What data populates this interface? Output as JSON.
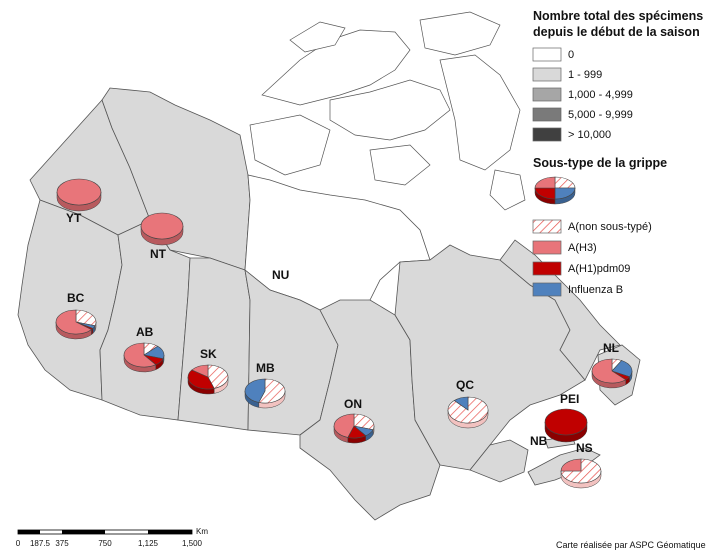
{
  "legend": {
    "total_title_line1": "Nombre total des spécimens",
    "total_title_line2": "depuis le début de la saison",
    "total_classes": [
      {
        "label": "0",
        "color": "#ffffff"
      },
      {
        "label": "1 - 999",
        "color": "#d9d9d9"
      },
      {
        "label": "1,000 - 4,999",
        "color": "#a6a6a6"
      },
      {
        "label": "5,000 - 9,999",
        "color": "#7a7a7a"
      },
      {
        "label": "> 10,000",
        "color": "#404040"
      }
    ],
    "subtype_title": "Sous-type de la grippe",
    "subtypes": [
      {
        "label": "A(non sous-typé)",
        "color": "#e8534f",
        "pattern": "hatch"
      },
      {
        "label": "A(H3)",
        "color": "#e8757a"
      },
      {
        "label": "A(H1)pdm09",
        "color": "#c00000"
      },
      {
        "label": "Influenza B",
        "color": "#4f81bd"
      }
    ]
  },
  "provinces": [
    {
      "code": "YT",
      "total_class": "1 - 999",
      "pie": {
        "unsubtyped": 0,
        "h3": 100,
        "h1": 0,
        "b": 0
      }
    },
    {
      "code": "NT",
      "total_class": "1 - 999",
      "pie": {
        "unsubtyped": 0,
        "h3": 100,
        "h1": 0,
        "b": 0
      }
    },
    {
      "code": "NU",
      "total_class": "0",
      "pie": null
    },
    {
      "code": "BC",
      "total_class": "1 - 999",
      "pie": {
        "unsubtyped": 30,
        "h3": 64,
        "h1": 2,
        "b": 4
      }
    },
    {
      "code": "AB",
      "total_class": "1 - 999",
      "pie": {
        "unsubtyped": 12,
        "h3": 60,
        "h1": 10,
        "b": 18
      }
    },
    {
      "code": "SK",
      "total_class": "1 - 999",
      "pie": {
        "unsubtyped": 45,
        "h3": 15,
        "h1": 40,
        "b": 0
      }
    },
    {
      "code": "MB",
      "total_class": "1 - 999",
      "pie": {
        "unsubtyped": 55,
        "h3": 0,
        "h1": 0,
        "b": 45
      }
    },
    {
      "code": "ON",
      "total_class": "1 - 999",
      "pie": {
        "unsubtyped": 30,
        "h3": 45,
        "h1": 15,
        "b": 10
      }
    },
    {
      "code": "QC",
      "total_class": "1 - 999",
      "pie": {
        "unsubtyped": 88,
        "h3": 0,
        "h1": 0,
        "b": 12
      }
    },
    {
      "code": "NL",
      "total_class": "1 - 999",
      "pie": {
        "unsubtyped": 8,
        "h3": 62,
        "h1": 5,
        "b": 25
      }
    },
    {
      "code": "PEI",
      "total_class": "1 - 999",
      "pie": {
        "unsubtyped": 0,
        "h3": 0,
        "h1": 100,
        "b": 0
      }
    },
    {
      "code": "NB",
      "total_class": "1 - 999",
      "pie": null
    },
    {
      "code": "NS",
      "total_class": "1 - 999",
      "pie": {
        "unsubtyped": 75,
        "h3": 25,
        "h1": 0,
        "b": 0
      }
    }
  ],
  "scale": {
    "ticks": [
      "0",
      "187.5",
      "375",
      "750",
      "1,125",
      "1,500"
    ],
    "unit": "Km"
  },
  "credit": "Carte réalisée par ASPC Géomatique"
}
